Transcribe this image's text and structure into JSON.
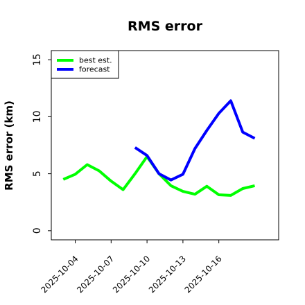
{
  "chart_data": {
    "type": "line",
    "title": "RMS error",
    "xlabel": "",
    "ylabel": "RMS error (km)",
    "ylim": [
      0,
      15
    ],
    "y_ticks": [
      0,
      5,
      10,
      15
    ],
    "x_ticks": [
      "2025-10-04",
      "2025-10-07",
      "2025-10-10",
      "2025-10-13",
      "2025-10-16"
    ],
    "x_range": [
      "2025-10-02",
      "2025-10-21"
    ],
    "legend": "upper-left",
    "grid": false,
    "series": [
      {
        "name": "best est.",
        "color": "#00ff00",
        "x": [
          "2025-10-03",
          "2025-10-04",
          "2025-10-05",
          "2025-10-06",
          "2025-10-07",
          "2025-10-08",
          "2025-10-09",
          "2025-10-10",
          "2025-10-11",
          "2025-10-12",
          "2025-10-13",
          "2025-10-14",
          "2025-10-15",
          "2025-10-16",
          "2025-10-17",
          "2025-10-18",
          "2025-10-19"
        ],
        "values": [
          4.5,
          4.95,
          5.8,
          5.25,
          4.35,
          3.6,
          5.0,
          6.5,
          5.0,
          3.95,
          3.45,
          3.2,
          3.9,
          3.15,
          3.1,
          3.7,
          3.95
        ]
      },
      {
        "name": "forecast",
        "color": "#0000ff",
        "x": [
          "2025-10-09",
          "2025-10-10",
          "2025-10-11",
          "2025-10-12",
          "2025-10-13",
          "2025-10-14",
          "2025-10-15",
          "2025-10-16",
          "2025-10-17",
          "2025-10-18",
          "2025-10-19"
        ],
        "values": [
          7.3,
          6.6,
          5.0,
          4.45,
          4.95,
          7.2,
          8.8,
          10.3,
          11.4,
          8.65,
          8.1
        ]
      }
    ]
  }
}
